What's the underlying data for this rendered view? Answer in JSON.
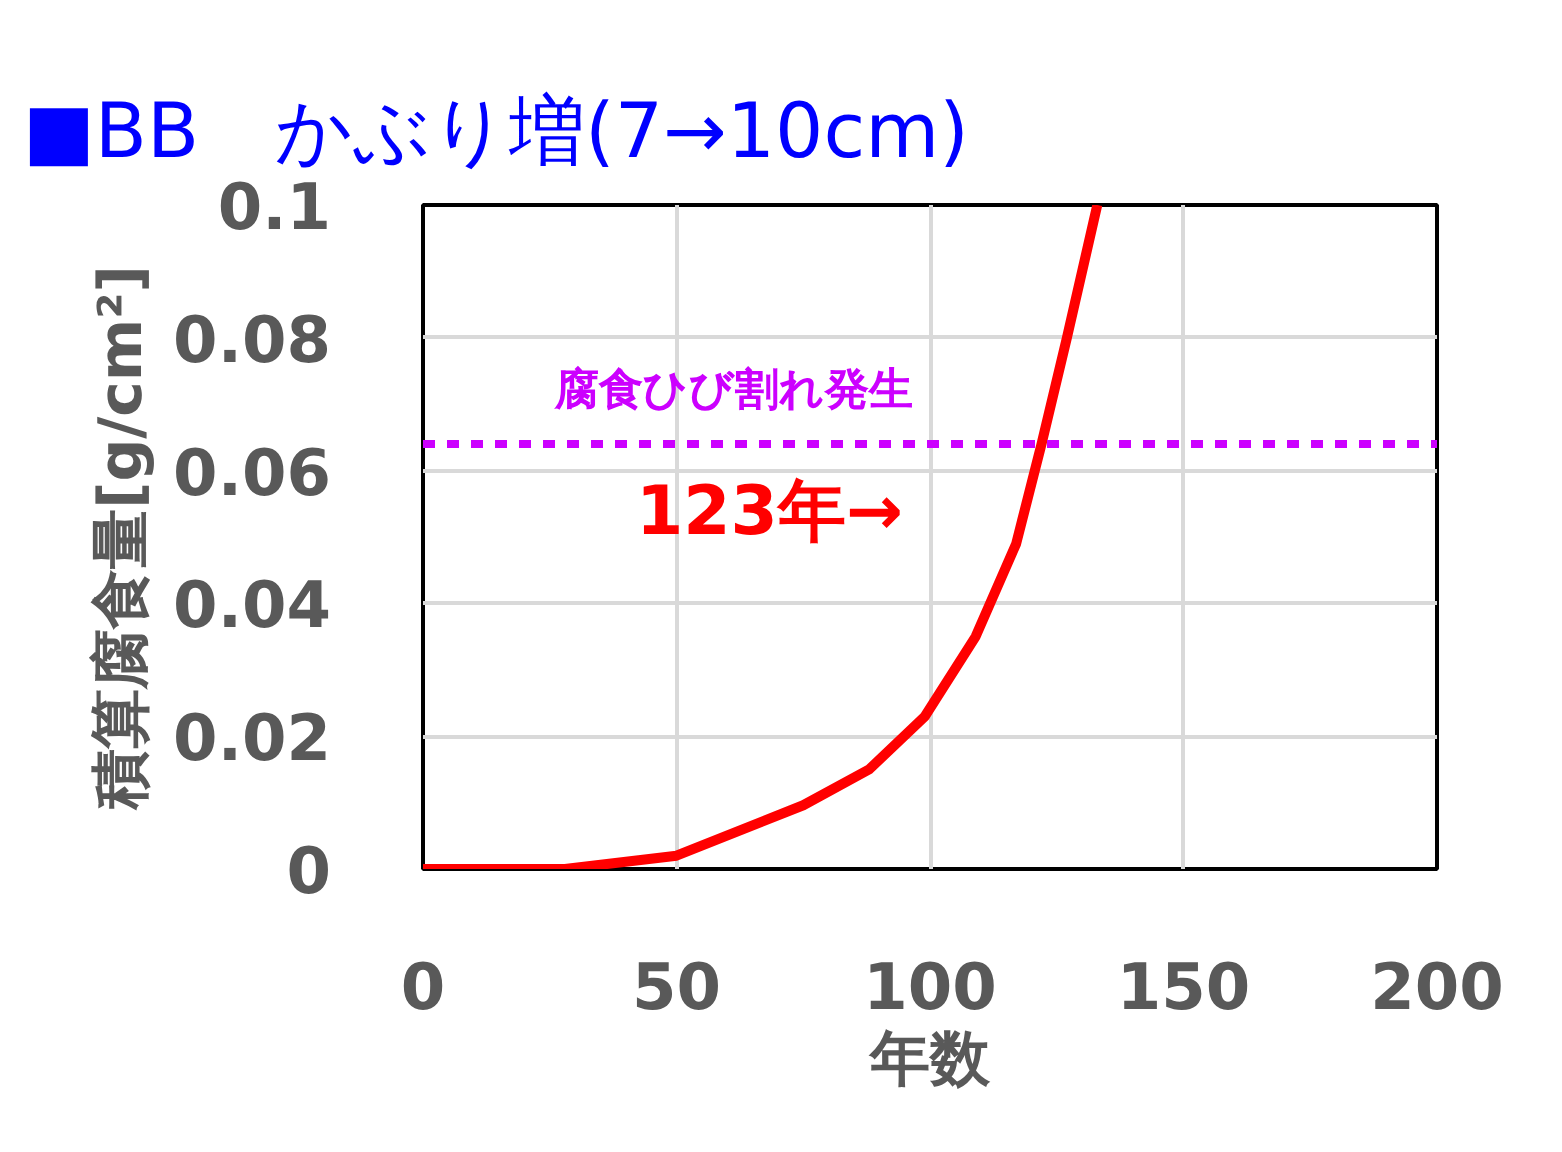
{
  "chart_data": {
    "type": "line",
    "title": "■BB　かぶり増(7→10cm)",
    "xlabel": "年数",
    "ylabel": "積算腐食量[g/cm²]",
    "x": [
      0,
      28,
      50,
      75,
      88,
      99,
      109,
      117,
      122,
      127,
      133
    ],
    "series": [
      {
        "color": "#ff0000",
        "values": [
          0,
          0,
          0.002,
          0.0096,
          0.015,
          0.023,
          0.035,
          0.049,
          0.064,
          0.08,
          0.1
        ]
      }
    ],
    "xlim": [
      0,
      200
    ],
    "ylim": [
      0,
      0.1
    ],
    "xticks": [
      0,
      50,
      100,
      150,
      200
    ],
    "yticks": [
      0,
      0.02,
      0.04,
      0.06,
      0.08,
      0.1
    ],
    "grid": true,
    "marker": "none",
    "line_style": "solid",
    "ref_lines": [
      {
        "axis": "y",
        "value": 0.064,
        "label": "腐食ひび割れ発生",
        "color": "#cc00ff",
        "line_style": "dashed"
      }
    ],
    "annotations": [
      "123年→"
    ]
  }
}
